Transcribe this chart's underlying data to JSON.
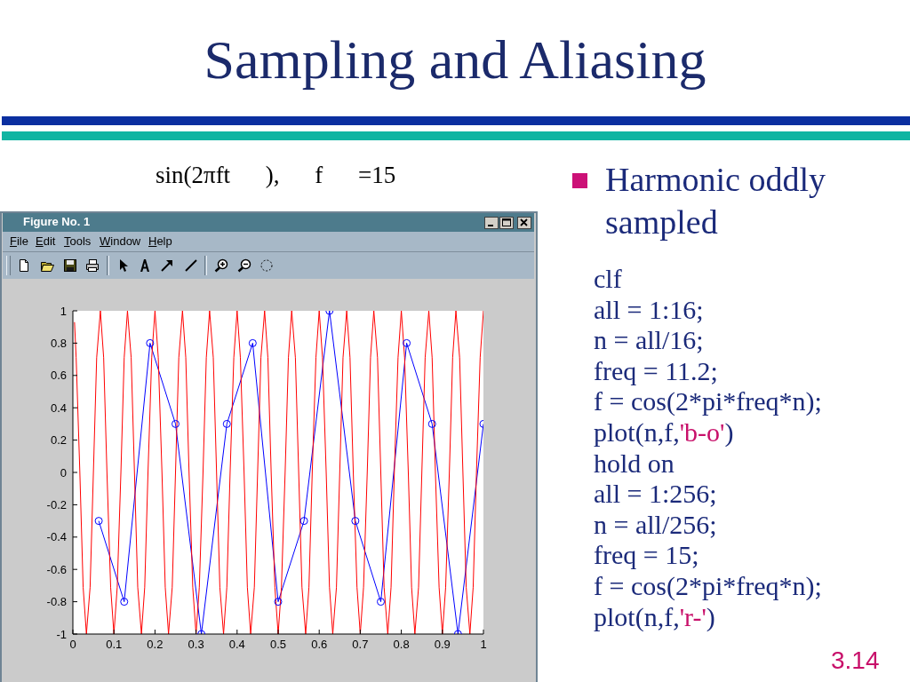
{
  "chart_data": {
    "type": "line",
    "title": "Sampling and Aliasing",
    "subtitle": "sin(2πft ), f =15",
    "annotations": [
      "Figure No. 1",
      "File",
      "Edit",
      "Tools",
      "Window",
      "Help",
      "Harmonic oddly sampled",
      "clf",
      "all = 1:16;",
      "n = all/16;",
      "freq = 11.2;",
      "f = cos(2*pi*freq*n);",
      "plot(n,f,'b-o')",
      "hold on",
      "all = 1:256;",
      "n = all/256;",
      "freq = 15;",
      "f = cos(2*pi*freq*n);",
      "plot(n,f,'r-')",
      "3.14"
    ],
    "series": [
      {
        "color": "#0000ff",
        "marker": "circle",
        "x": [
          0.063,
          0.125,
          0.188,
          0.25,
          0.313,
          0.375,
          0.438,
          0.5,
          0.563,
          0.625,
          0.688,
          0.75,
          0.813,
          0.875,
          0.938,
          1
        ],
        "values": [
          -0.3,
          -0.8,
          0.8,
          0.3,
          -1,
          0.3,
          0.8,
          -0.8,
          -0.3,
          1,
          -0.3,
          -0.8,
          0.8,
          0.3,
          -1,
          0.3
        ]
      },
      {
        "color": "#ff0000",
        "marker": "none",
        "x": [
          0.004,
          0.008,
          0.017,
          0.025,
          0.033,
          0.042,
          0.05,
          0.058,
          0.067,
          0.075,
          0.083,
          0.092,
          0.1,
          0.108,
          0.117,
          0.125,
          0.133,
          0.142,
          0.15,
          0.158,
          0.167,
          0.175,
          0.183,
          0.192,
          0.2,
          0.208,
          0.217,
          0.225,
          0.233,
          0.242,
          0.25,
          0.258,
          0.267,
          0.275,
          0.283,
          0.292,
          0.3,
          0.308,
          0.317,
          0.325,
          0.333,
          0.342,
          0.35,
          0.358,
          0.367,
          0.375,
          0.383,
          0.392,
          0.4,
          0.408,
          0.417,
          0.425,
          0.433,
          0.442,
          0.45,
          0.458,
          0.467,
          0.475,
          0.483,
          0.492,
          0.5,
          0.508,
          0.517,
          0.525,
          0.533,
          0.542,
          0.55,
          0.558,
          0.567,
          0.575,
          0.583,
          0.592,
          0.6,
          0.608,
          0.617,
          0.625,
          0.633,
          0.642,
          0.65,
          0.658,
          0.667,
          0.675,
          0.683,
          0.692,
          0.7,
          0.708,
          0.717,
          0.725,
          0.733,
          0.742,
          0.75,
          0.758,
          0.767,
          0.775,
          0.783,
          0.792,
          0.8,
          0.808,
          0.817,
          0.825,
          0.833,
          0.842,
          0.85,
          0.858,
          0.867,
          0.875,
          0.883,
          0.892,
          0.9,
          0.908,
          0.917,
          0.925,
          0.933,
          0.942,
          0.95,
          0.958,
          0.967,
          0.975,
          0.983,
          0.992,
          1
        ],
        "values": [
          0.93,
          0.71,
          0,
          -0.71,
          -1,
          -0.71,
          0,
          0.71,
          1,
          0.71,
          0,
          -0.71,
          -1,
          -0.71,
          0,
          0.71,
          1,
          0.71,
          0,
          -0.71,
          -1,
          -0.71,
          0,
          0.71,
          1,
          0.71,
          0,
          -0.71,
          -1,
          -0.71,
          0,
          0.71,
          1,
          0.71,
          0,
          -0.71,
          -1,
          -0.71,
          0,
          0.71,
          1,
          0.71,
          0,
          -0.71,
          -1,
          -0.71,
          0,
          0.71,
          1,
          0.71,
          0,
          -0.71,
          -1,
          -0.71,
          0,
          0.71,
          1,
          0.71,
          0,
          -0.71,
          -1,
          -0.71,
          0,
          0.71,
          1,
          0.71,
          0,
          -0.71,
          -1,
          -0.71,
          0,
          0.71,
          1,
          0.71,
          0,
          -0.71,
          -1,
          -0.71,
          0,
          0.71,
          1,
          0.71,
          0,
          -0.71,
          -1,
          -0.71,
          0,
          0.71,
          1,
          0.71,
          0,
          -0.71,
          -1,
          -0.71,
          0,
          0.71,
          1,
          0.71,
          0,
          -0.71,
          -1,
          -0.71,
          0,
          0.71,
          1,
          0.71,
          0,
          -0.71,
          -1,
          -0.71,
          0,
          0.71,
          1,
          0.71,
          0,
          -0.71,
          -1,
          -0.71,
          0,
          0.71,
          1
        ]
      }
    ],
    "xlim": [
      0,
      1
    ],
    "xticks": [
      0,
      0.1,
      0.2,
      0.3,
      0.4,
      0.5,
      0.6,
      0.7,
      0.8,
      0.9,
      1
    ],
    "ylim": [
      -1,
      1
    ],
    "yticks": [
      -1,
      -0.8,
      -0.6,
      -0.4,
      -0.2,
      0,
      0.2,
      0.4,
      0.6,
      0.8,
      1
    ],
    "line_style": "solid"
  }
}
